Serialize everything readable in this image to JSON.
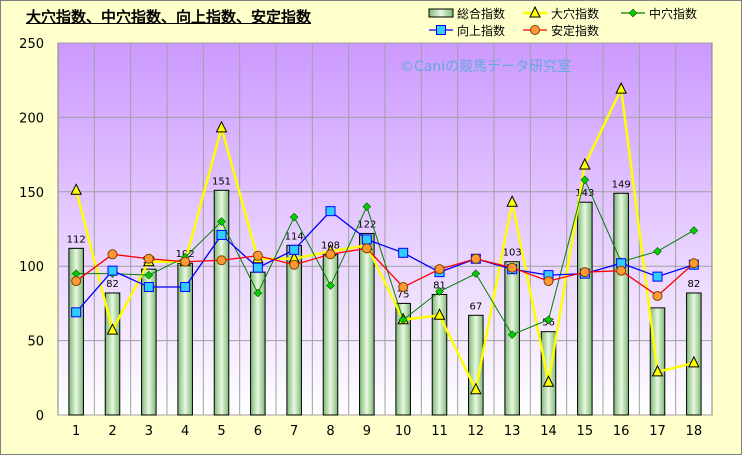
{
  "chart_data": {
    "type": "bar+line",
    "title": "大穴指数、中穴指数、向上指数、安定指数",
    "watermark": "©Caniの競馬データ研究室",
    "categories": [
      "1",
      "2",
      "3",
      "4",
      "5",
      "6",
      "7",
      "8",
      "9",
      "10",
      "11",
      "12",
      "13",
      "14",
      "15",
      "16",
      "17",
      "18"
    ],
    "ylim": [
      0,
      250
    ],
    "yticks": [
      "0",
      "50",
      "100",
      "150",
      "200",
      "250"
    ],
    "grid": true,
    "legend_position": "top-right",
    "bars": {
      "name": "総合指数",
      "color": "#b8e0b0",
      "values": [
        112,
        82,
        98,
        102,
        151,
        96,
        114,
        108,
        122,
        75,
        81,
        67,
        103,
        56,
        143,
        149,
        72,
        82
      ],
      "labels": [
        "112",
        "82",
        "98",
        "102",
        "151",
        "",
        "114",
        "108",
        "122",
        "75",
        "81",
        "67",
        "103",
        "56",
        "143",
        "149",
        "",
        "82"
      ]
    },
    "series": [
      {
        "name": "大穴指数",
        "color": "#ffff00",
        "marker": "triangle",
        "values": [
          151,
          57,
          103,
          103,
          193,
          105,
          105,
          110,
          114,
          64,
          67,
          17,
          143,
          22,
          168,
          219,
          29,
          35
        ]
      },
      {
        "name": "中穴指数",
        "color": "#008000",
        "marker": "diamond",
        "values": [
          95,
          95,
          94,
          106,
          130,
          82,
          133,
          87,
          140,
          64,
          83,
          95,
          54,
          64,
          158,
          103,
          110,
          124
        ]
      },
      {
        "name": "向上指数",
        "color": "#0000ff",
        "marker": "square",
        "values": [
          69,
          97,
          86,
          86,
          121,
          99,
          111,
          137,
          118,
          109,
          96,
          105,
          98,
          94,
          95,
          102,
          93,
          101
        ]
      },
      {
        "name": "安定指数",
        "color": "#ff0000",
        "marker": "circle",
        "values": [
          90,
          108,
          105,
          103,
          104,
          107,
          101,
          108,
          112,
          86,
          98,
          105,
          99,
          90,
          96,
          97,
          80,
          102
        ]
      }
    ]
  }
}
